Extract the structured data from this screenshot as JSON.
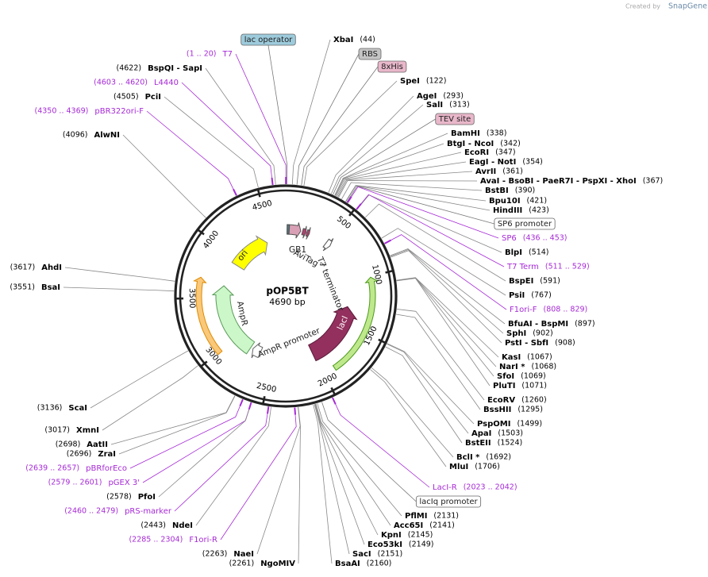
{
  "header": {
    "credit": "Created by",
    "brand": "SnapGene"
  },
  "plasmid": {
    "name": "pOP5BT",
    "size": "4690 bp"
  },
  "ruler": [
    500,
    1000,
    1500,
    2000,
    2500,
    3000,
    3500,
    4000,
    4500
  ],
  "features": {
    "ori": "ori",
    "ampr": "AmpR",
    "ampr_promoter": "AmpR promoter",
    "laci": "lacI",
    "t7_terminator": "T7 terminator",
    "gb1": "GB1",
    "avitag": "AviTag™"
  },
  "sites": {
    "right": [
      {
        "name": "XbaI",
        "pos": "(44)"
      },
      {
        "box": "lac operator",
        "color": "#9dcbdc"
      },
      {
        "box": "RBS",
        "color": "#c4c4c4"
      },
      {
        "box": "8xHis",
        "color": "#e9b7ca"
      },
      {
        "name": "SpeI",
        "pos": "(122)"
      },
      {
        "name": "AgeI",
        "pos": "(293)"
      },
      {
        "name": "SalI",
        "pos": "(313)"
      },
      {
        "box": "TEV site",
        "color": "#e9b7ca"
      },
      {
        "name": "BamHI",
        "pos": "(338)"
      },
      {
        "name": "BtgI  - NcoI",
        "pos": "(342)"
      },
      {
        "name": "EcoRI",
        "pos": "(347)"
      },
      {
        "name": "EagI  - NotI",
        "pos": "(354)"
      },
      {
        "name": "AvrII",
        "pos": "(361)"
      },
      {
        "name": "AvaI  - BsoBI  - PaeR7I  - PspXI - XhoI",
        "pos": "(367)"
      },
      {
        "name": "BstBI",
        "pos": "(390)"
      },
      {
        "name": "Bpu10I",
        "pos": "(421)"
      },
      {
        "name": "HindIII",
        "pos": "(423)"
      },
      {
        "box": "SP6 promoter",
        "color": "#ffffff"
      },
      {
        "name": "SP6",
        "pos": "(436 .. 453)"
      },
      {
        "name": "BlpI",
        "pos": "(514)"
      },
      {
        "name": "T7 Term",
        "pos": "(511 .. 529)"
      },
      {
        "name": "BspEI",
        "pos": "(591)"
      },
      {
        "name": "PsiI",
        "pos": "(767)"
      },
      {
        "name": "F1ori-F",
        "pos": "(808 .. 829)"
      },
      {
        "name": "BfuAI  - BspMI",
        "pos": "(897)"
      },
      {
        "name": "SphI",
        "pos": "(902)"
      },
      {
        "name": "PstI  - SbfI",
        "pos": "(908)"
      },
      {
        "name": "KasI",
        "pos": "(1067)"
      },
      {
        "name": "NarI *",
        "pos": "(1068)"
      },
      {
        "name": "SfoI",
        "pos": "(1069)"
      },
      {
        "name": "PluTI",
        "pos": "(1071)"
      },
      {
        "name": "EcoRV",
        "pos": "(1260)"
      },
      {
        "name": "BssHII",
        "pos": "(1295)"
      },
      {
        "name": "PspOMI",
        "pos": "(1499)"
      },
      {
        "name": "ApaI",
        "pos": "(1503)"
      },
      {
        "name": "BstEII",
        "pos": "(1524)"
      },
      {
        "name": "BclI *",
        "pos": "(1692)"
      },
      {
        "name": "MluI",
        "pos": "(1706)"
      },
      {
        "name": "LacI-R",
        "pos": "(2023 .. 2042)"
      },
      {
        "box": "lacIq promoter",
        "color": "#ffffff"
      },
      {
        "name": "PflMI",
        "pos": "(2131)"
      },
      {
        "name": "Acc65I",
        "pos": "(2141)"
      },
      {
        "name": "KpnI",
        "pos": "(2145)"
      },
      {
        "name": "Eco53kI",
        "pos": "(2149)"
      },
      {
        "name": "SacI",
        "pos": "(2151)"
      },
      {
        "name": "BsaAI",
        "pos": "(2160)"
      }
    ],
    "left": [
      {
        "name": "T7",
        "pos": "(1 .. 20)"
      },
      {
        "name": "BspQI  - SapI",
        "pos": "(4622)"
      },
      {
        "name": "L4440",
        "pos": "(4603 .. 4620)"
      },
      {
        "name": "PciI",
        "pos": "(4505)"
      },
      {
        "name": "pBR322ori-F",
        "pos": "(4350 .. 4369)"
      },
      {
        "name": "AlwNI",
        "pos": "(4096)"
      },
      {
        "name": "AhdI",
        "pos": "(3617)"
      },
      {
        "name": "BsaI",
        "pos": "(3551)"
      },
      {
        "name": "ScaI",
        "pos": "(3136)"
      },
      {
        "name": "XmnI",
        "pos": "(3017)"
      },
      {
        "name": "AatII",
        "pos": "(2698)"
      },
      {
        "name": "ZraI",
        "pos": "(2696)"
      },
      {
        "name": "pBRforEco",
        "pos": "(2639 .. 2657)"
      },
      {
        "name": "pGEX 3'",
        "pos": "(2579 .. 2601)"
      },
      {
        "name": "PfoI",
        "pos": "(2578)"
      },
      {
        "name": "pRS-marker",
        "pos": "(2460 .. 2479)"
      },
      {
        "name": "NdeI",
        "pos": "(2443)"
      },
      {
        "name": "F1ori-R",
        "pos": "(2285 .. 2304)"
      },
      {
        "name": "NaeI",
        "pos": "(2263)"
      },
      {
        "name": "NgoMIV",
        "pos": "(2261)"
      }
    ]
  }
}
